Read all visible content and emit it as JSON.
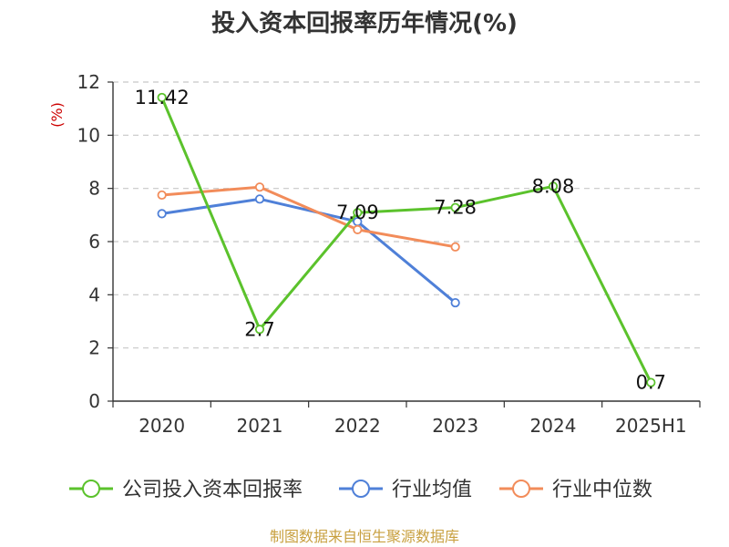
{
  "chart_data": {
    "type": "line",
    "title": "投入资本回报率历年情况(%)",
    "ylabel": "(%)",
    "xlabel": "",
    "categories": [
      "2020",
      "2021",
      "2022",
      "2023",
      "2024",
      "2025H1"
    ],
    "ylim": [
      0,
      12
    ],
    "yticks": [
      0,
      2,
      4,
      6,
      8,
      10,
      12
    ],
    "grid": true,
    "legend_position": "bottom",
    "series": [
      {
        "name": "公司投入资本回报率",
        "color": "#5bc22c",
        "values": [
          11.42,
          2.7,
          7.09,
          7.28,
          8.08,
          0.7
        ],
        "labels": [
          "11.42",
          "2.7",
          "7.09",
          "7.28",
          "8.08",
          "0.7"
        ]
      },
      {
        "name": "行业均值",
        "color": "#4f80d8",
        "values": [
          7.05,
          7.6,
          6.75,
          3.7,
          null,
          null
        ]
      },
      {
        "name": "行业中位数",
        "color": "#f28c5a",
        "values": [
          7.75,
          8.05,
          6.45,
          5.8,
          null,
          null
        ]
      }
    ]
  },
  "source": "制图数据来自恒生聚源数据库"
}
